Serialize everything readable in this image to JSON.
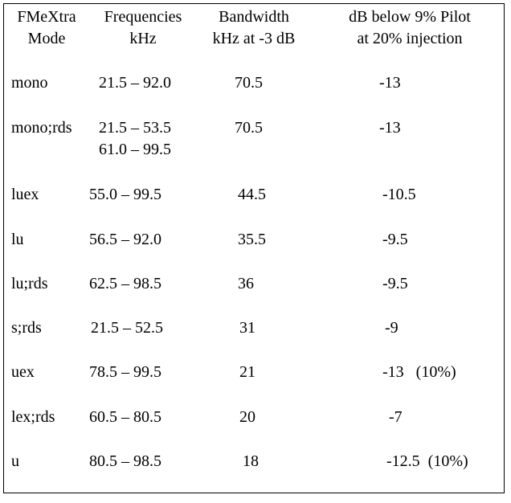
{
  "headers": {
    "mode": [
      "FMeXtra",
      "Mode"
    ],
    "frequencies": [
      "Frequencies",
      "kHz"
    ],
    "bandwidth": [
      "Bandwidth",
      "kHz at -3 dB"
    ],
    "db": [
      "dB below 9% Pilot",
      "at 20% injection"
    ]
  },
  "rows": [
    {
      "mode": "mono",
      "freq": [
        "21.5 – 92.0"
      ],
      "bw": "70.5",
      "db": "-13"
    },
    {
      "mode": "mono;rds",
      "freq": [
        "21.5 – 53.5",
        "61.0 – 99.5"
      ],
      "bw": "70.5",
      "db": "-13"
    },
    {
      "mode": "luex",
      "freq": [
        "55.0 – 99.5"
      ],
      "bw": "44.5",
      "db": "-10.5"
    },
    {
      "mode": "lu",
      "freq": [
        "56.5 – 92.0"
      ],
      "bw": "35.5",
      "db": "-9.5"
    },
    {
      "mode": "lu;rds",
      "freq": [
        "62.5 – 98.5"
      ],
      "bw": "36",
      "db": "-9.5"
    },
    {
      "mode": "s;rds",
      "freq": [
        "21.5 – 52.5"
      ],
      "bw": "31",
      "db": "-9"
    },
    {
      "mode": "uex",
      "freq": [
        "78.5 – 99.5"
      ],
      "bw": "21",
      "db": "-13   (10%)"
    },
    {
      "mode": "lex;rds",
      "freq": [
        "60.5 – 80.5"
      ],
      "bw": "20",
      "db": "-7"
    },
    {
      "mode": "u",
      "freq": [
        "80.5 – 98.5"
      ],
      "bw": "18",
      "db": "-12.5  (10%)"
    }
  ]
}
